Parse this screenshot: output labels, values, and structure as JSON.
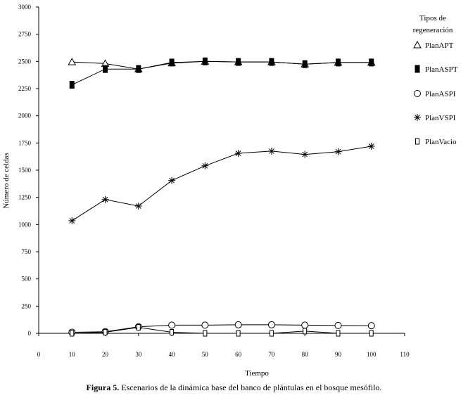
{
  "chart_data": {
    "type": "line",
    "xlabel": "Tiempo",
    "ylabel": "Número de celdas",
    "xlim": [
      0,
      110
    ],
    "ylim": [
      0,
      3000
    ],
    "x_ticks": [
      0,
      10,
      20,
      30,
      40,
      50,
      60,
      70,
      80,
      90,
      100,
      110
    ],
    "y_ticks": [
      0,
      250,
      500,
      750,
      1000,
      1250,
      1500,
      1750,
      2000,
      2250,
      2500,
      2750,
      3000
    ],
    "x": [
      10,
      20,
      30,
      40,
      50,
      60,
      70,
      80,
      90,
      100
    ],
    "legend_title": "Tipos de regeneración",
    "legend_title_lines": [
      "Tipos de",
      "regeneración"
    ],
    "legend_position": "right",
    "series": [
      {
        "name": "PlanAPT",
        "marker": "triangle-open",
        "values": [
          2495,
          2480,
          2430,
          2485,
          2500,
          2495,
          2495,
          2475,
          2490,
          2490
        ]
      },
      {
        "name": "PlanASPT",
        "marker": "rect-filled",
        "values": [
          2285,
          2430,
          2430,
          2490,
          2500,
          2495,
          2495,
          2475,
          2490,
          2490
        ]
      },
      {
        "name": "PlanASPI",
        "marker": "circle-open",
        "values": [
          10,
          15,
          60,
          75,
          75,
          78,
          78,
          75,
          72,
          70
        ]
      },
      {
        "name": "PlanVSPI",
        "marker": "asterisk",
        "values": [
          1035,
          1230,
          1170,
          1405,
          1540,
          1655,
          1675,
          1645,
          1670,
          1720
        ]
      },
      {
        "name": "PlanVacio",
        "marker": "rect-open",
        "values": [
          0,
          10,
          55,
          10,
          0,
          0,
          0,
          20,
          0,
          0
        ]
      }
    ]
  },
  "caption": {
    "label": "Figura 5.",
    "text": " Escenarios de la dinámica base del banco de plántulas en el bosque mesófilo."
  }
}
